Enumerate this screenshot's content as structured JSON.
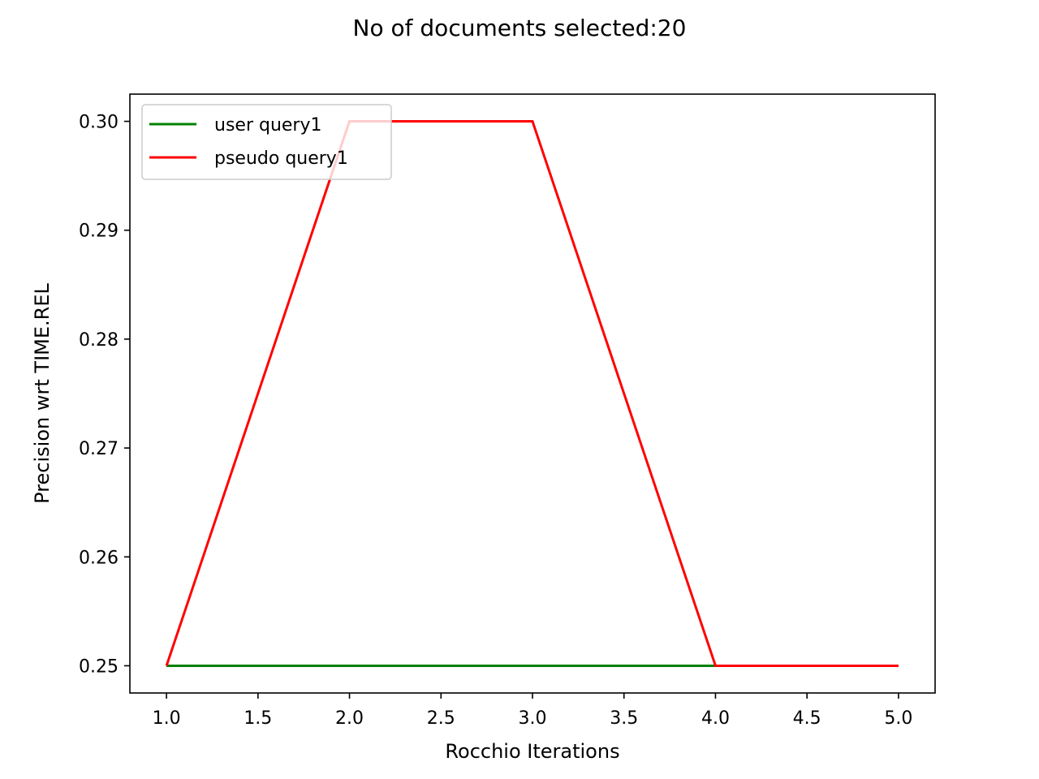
{
  "chart_data": {
    "type": "line",
    "title": "No of documents selected:20",
    "xlabel": "Rocchio Iterations",
    "ylabel": "Precision wrt TIME.REL",
    "xlim": [
      0.8,
      5.2
    ],
    "ylim": [
      0.2475,
      0.3025
    ],
    "xticks": [
      1.0,
      1.5,
      2.0,
      2.5,
      3.0,
      3.5,
      4.0,
      4.5,
      5.0
    ],
    "xtick_labels": [
      "1.0",
      "1.5",
      "2.0",
      "2.5",
      "3.0",
      "3.5",
      "4.0",
      "4.5",
      "5.0"
    ],
    "yticks": [
      0.25,
      0.26,
      0.27,
      0.28,
      0.29,
      0.3
    ],
    "ytick_labels": [
      "0.25",
      "0.26",
      "0.27",
      "0.28",
      "0.29",
      "0.30"
    ],
    "grid": false,
    "legend_position": "top-left",
    "series": [
      {
        "name": "user query1",
        "color": "#008000",
        "x": [
          1,
          2,
          3,
          4
        ],
        "y": [
          0.25,
          0.25,
          0.25,
          0.25
        ]
      },
      {
        "name": "pseudo query1",
        "color": "#ff0000",
        "x": [
          1,
          2,
          3,
          4,
          5
        ],
        "y": [
          0.25,
          0.3,
          0.3,
          0.25,
          0.25
        ]
      }
    ]
  }
}
